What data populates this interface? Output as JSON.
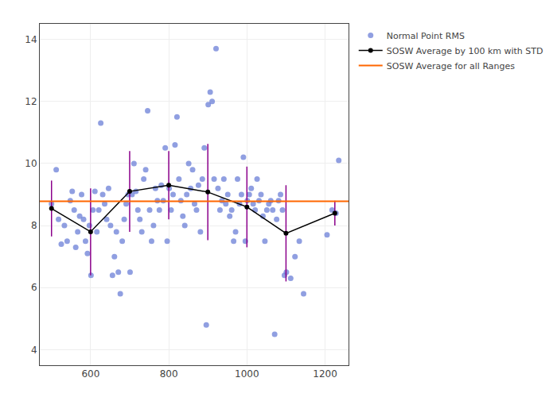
{
  "chart_data": {
    "type": "scatter",
    "series": [
      {
        "name": "Normal Point RMS",
        "type": "scatter",
        "marker": "circle",
        "color": "#6B7FD7",
        "x": [
          500,
          512,
          518,
          525,
          533,
          540,
          548,
          553,
          558,
          562,
          567,
          572,
          577,
          582,
          587,
          592,
          597,
          601,
          606,
          611,
          616,
          621,
          626,
          631,
          636,
          641,
          646,
          651,
          656,
          661,
          666,
          671,
          676,
          681,
          686,
          691,
          696,
          701,
          706,
          711,
          716,
          721,
          726,
          731,
          736,
          741,
          746,
          751,
          756,
          761,
          766,
          771,
          776,
          781,
          786,
          791,
          796,
          801,
          806,
          811,
          816,
          821,
          826,
          831,
          836,
          841,
          846,
          851,
          856,
          861,
          866,
          871,
          876,
          881,
          886,
          891,
          896,
          901,
          906,
          911,
          916,
          921,
          926,
          931,
          936,
          941,
          946,
          951,
          956,
          961,
          966,
          971,
          976,
          981,
          986,
          991,
          996,
          1001,
          1006,
          1011,
          1016,
          1021,
          1026,
          1031,
          1036,
          1041,
          1046,
          1051,
          1056,
          1061,
          1066,
          1071,
          1076,
          1081,
          1086,
          1091,
          1096,
          1101,
          1112,
          1123,
          1134,
          1145,
          1205,
          1218,
          1228,
          1235
        ],
        "values": [
          8.7,
          9.8,
          8.2,
          7.4,
          8.0,
          7.5,
          8.8,
          9.1,
          8.5,
          7.3,
          7.8,
          8.3,
          9.0,
          8.2,
          7.5,
          7.1,
          8.0,
          6.4,
          8.5,
          9.1,
          7.8,
          8.5,
          11.3,
          9.0,
          8.7,
          8.2,
          9.2,
          8.0,
          6.4,
          7.0,
          7.8,
          6.5,
          5.8,
          7.5,
          8.2,
          8.7,
          9.0,
          6.5,
          9.0,
          10.0,
          9.1,
          8.5,
          8.2,
          7.8,
          9.5,
          9.8,
          11.7,
          8.5,
          7.5,
          8.0,
          9.2,
          8.8,
          8.5,
          9.3,
          8.8,
          10.5,
          7.5,
          9.2,
          8.5,
          9.0,
          10.6,
          11.5,
          9.5,
          8.8,
          8.3,
          8.0,
          9.0,
          10.0,
          9.2,
          9.8,
          8.7,
          8.5,
          9.3,
          7.8,
          9.5,
          10.5,
          4.8,
          11.9,
          12.3,
          12.0,
          9.5,
          13.7,
          9.2,
          8.5,
          8.8,
          9.5,
          8.7,
          9.0,
          8.3,
          8.5,
          7.5,
          7.8,
          9.5,
          8.7,
          9.0,
          10.2,
          7.5,
          8.8,
          9.0,
          9.2,
          8.7,
          8.5,
          9.5,
          8.8,
          9.0,
          8.3,
          7.5,
          8.5,
          8.7,
          8.8,
          8.5,
          4.5,
          8.2,
          8.8,
          9.0,
          8.5,
          6.4,
          6.5,
          6.3,
          7.0,
          7.5,
          5.8,
          7.7,
          8.5,
          8.4,
          10.1
        ]
      },
      {
        "name": "SOSW Average by 100 km with STD",
        "type": "line",
        "marker": "circle",
        "color": "#000000",
        "x": [
          500,
          600,
          700,
          800,
          900,
          1000,
          1100,
          1225
        ],
        "values": [
          8.55,
          7.8,
          9.1,
          9.3,
          9.08,
          8.6,
          7.75,
          8.4
        ],
        "error_bars": {
          "values": [
            0.9,
            1.4,
            1.3,
            1.1,
            1.55,
            1.3,
            1.55,
            0.4
          ],
          "color": "#8B008B"
        }
      },
      {
        "name": "SOSW Average for all Ranges",
        "type": "hline",
        "color": "#FF6600",
        "y": 8.78
      }
    ],
    "xlim": [
      470,
      1260
    ],
    "ylim": [
      3.5,
      14.5
    ],
    "xticks": [
      600,
      800,
      1000,
      1200
    ],
    "yticks": [
      4,
      6,
      8,
      10,
      12,
      14
    ],
    "grid": true,
    "legend": "right"
  }
}
